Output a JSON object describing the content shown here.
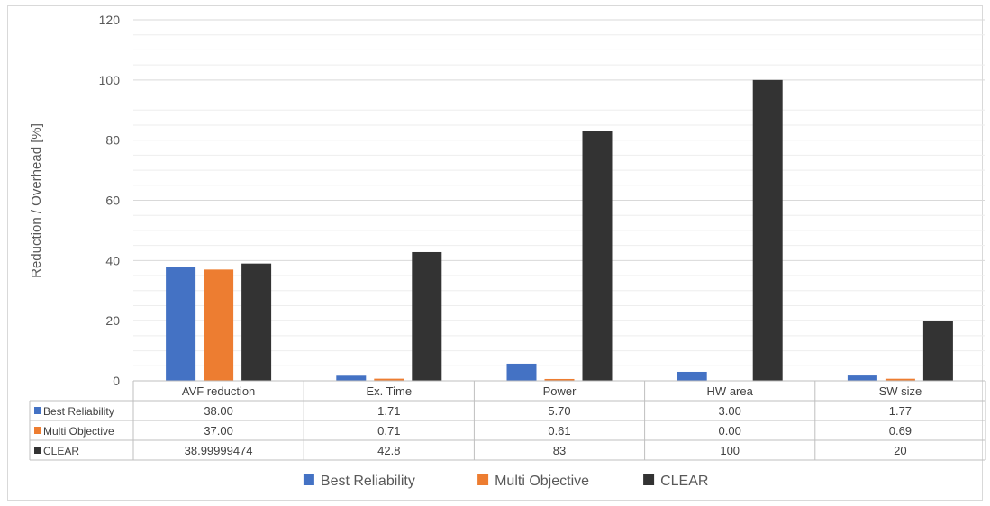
{
  "chart_data": {
    "type": "bar",
    "title": "",
    "xlabel": "",
    "ylabel": "Reduction / Overhead [%]",
    "ylim": [
      0,
      120
    ],
    "yticks": [
      0,
      20,
      40,
      60,
      80,
      100,
      120
    ],
    "minor_grid_step": 5,
    "grid": true,
    "legend_position": "bottom",
    "categories": [
      "AVF reduction",
      "Ex. Time",
      "Power",
      "HW area",
      "SW size"
    ],
    "series": [
      {
        "name": "Best Reliability",
        "color": "#4472c4",
        "values": [
          38.0,
          1.71,
          5.7,
          3.0,
          1.77
        ],
        "table_labels": [
          "38.00",
          "1.71",
          "5.70",
          "3.00",
          "1.77"
        ]
      },
      {
        "name": "Multi Objective",
        "color": "#ed7d31",
        "values": [
          37.0,
          0.71,
          0.61,
          0.0,
          0.69
        ],
        "table_labels": [
          "37.00",
          "0.71",
          "0.61",
          "0.00",
          "0.69"
        ]
      },
      {
        "name": "CLEAR",
        "color": "#333333",
        "values": [
          38.99999474,
          42.8,
          83,
          100,
          20
        ],
        "table_labels": [
          "38.99999474",
          "42.8",
          "83",
          "100",
          "20"
        ]
      }
    ],
    "data_table": true
  }
}
